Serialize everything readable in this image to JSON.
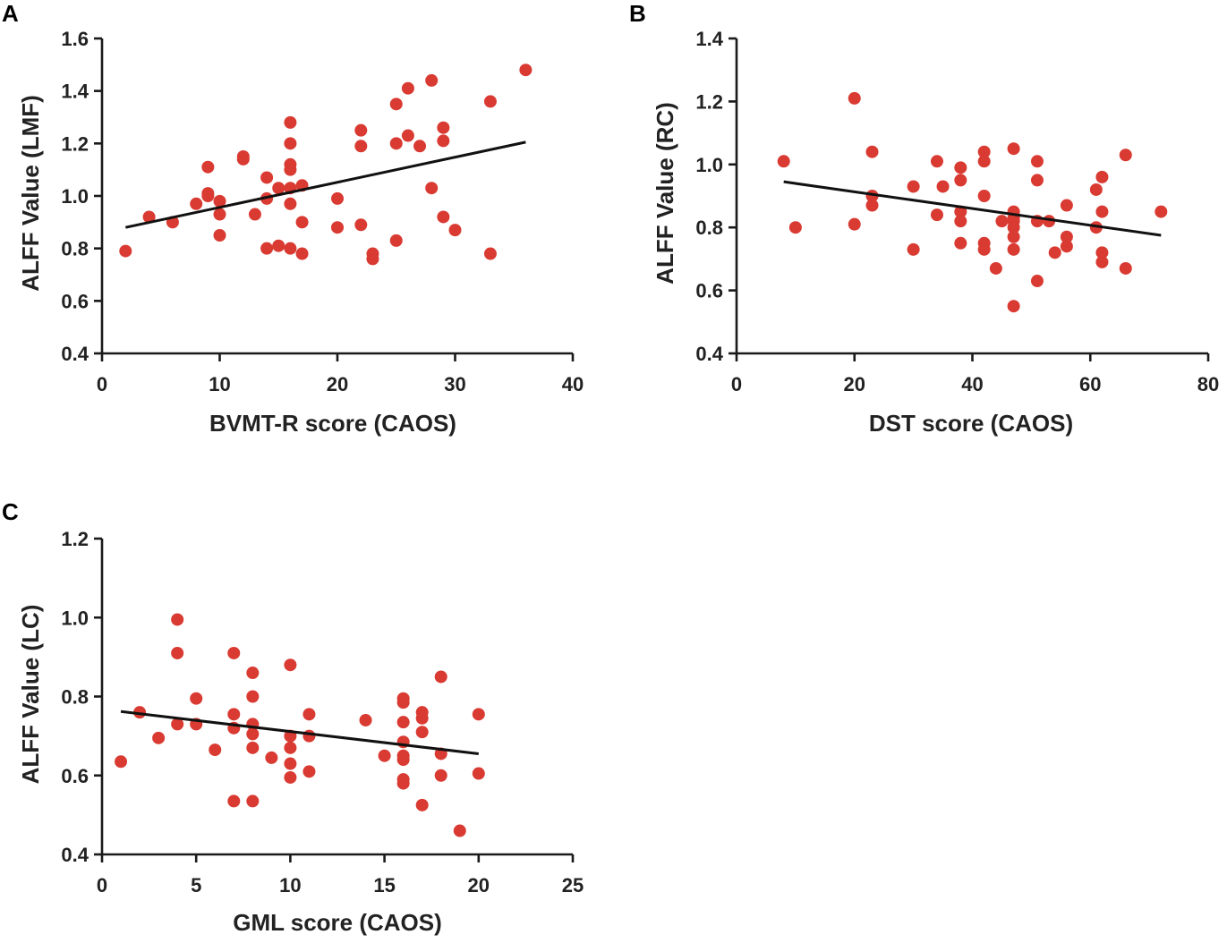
{
  "chart_data": [
    {
      "panel_label": "A",
      "type": "scatter",
      "title": "",
      "xlabel": "BVMT-R score (CAOS)",
      "ylabel": "ALFF Value (LMF)",
      "xlim": [
        0,
        40
      ],
      "ylim": [
        0.4,
        1.6
      ],
      "xticks": [
        0,
        10,
        20,
        30,
        40
      ],
      "yticks": [
        0.4,
        0.6,
        0.8,
        1.0,
        1.2,
        1.4,
        1.6
      ],
      "xtick_labels": [
        "0",
        "10",
        "20",
        "30",
        "40"
      ],
      "ytick_labels": [
        "0.4",
        "0.6",
        "0.8",
        "1.0",
        "1.2",
        "1.4",
        "1.6"
      ],
      "point_color": "#d93a32",
      "regression_line": {
        "x": [
          2,
          36
        ],
        "y": [
          0.88,
          1.205
        ]
      },
      "points": [
        [
          2,
          0.79
        ],
        [
          4,
          0.92
        ],
        [
          6,
          0.9
        ],
        [
          8,
          0.97
        ],
        [
          9,
          1.0
        ],
        [
          9,
          1.01
        ],
        [
          9,
          1.11
        ],
        [
          10,
          0.98
        ],
        [
          10,
          0.93
        ],
        [
          10,
          0.85
        ],
        [
          12,
          1.14
        ],
        [
          12,
          1.15
        ],
        [
          13,
          0.93
        ],
        [
          14,
          1.07
        ],
        [
          14,
          0.99
        ],
        [
          14,
          0.8
        ],
        [
          15,
          1.03
        ],
        [
          15,
          0.81
        ],
        [
          16,
          1.28
        ],
        [
          16,
          1.2
        ],
        [
          16,
          1.12
        ],
        [
          16,
          1.1
        ],
        [
          16,
          1.03
        ],
        [
          16,
          0.97
        ],
        [
          16,
          0.8
        ],
        [
          17,
          1.04
        ],
        [
          17,
          0.9
        ],
        [
          17,
          0.78
        ],
        [
          20,
          0.99
        ],
        [
          20,
          0.88
        ],
        [
          22,
          1.25
        ],
        [
          22,
          1.19
        ],
        [
          22,
          0.89
        ],
        [
          23,
          0.78
        ],
        [
          23,
          0.76
        ],
        [
          25,
          1.35
        ],
        [
          25,
          1.2
        ],
        [
          25,
          0.83
        ],
        [
          26,
          1.41
        ],
        [
          26,
          1.23
        ],
        [
          27,
          1.19
        ],
        [
          28,
          1.44
        ],
        [
          28,
          1.03
        ],
        [
          29,
          1.26
        ],
        [
          29,
          1.21
        ],
        [
          29,
          0.92
        ],
        [
          30,
          0.87
        ],
        [
          33,
          1.36
        ],
        [
          33,
          0.78
        ],
        [
          36,
          1.48
        ]
      ]
    },
    {
      "panel_label": "B",
      "type": "scatter",
      "title": "",
      "xlabel": "DST score (CAOS)",
      "ylabel": "ALFF Value (RC)",
      "xlim": [
        0,
        80
      ],
      "ylim": [
        0.4,
        1.4
      ],
      "xticks": [
        0,
        20,
        40,
        60,
        80
      ],
      "yticks": [
        0.4,
        0.6,
        0.8,
        1.0,
        1.2,
        1.4
      ],
      "xtick_labels": [
        "0",
        "20",
        "40",
        "60",
        "80"
      ],
      "ytick_labels": [
        "0.4",
        "0.6",
        "0.8",
        "1.0",
        "1.2",
        "1.4"
      ],
      "point_color": "#d93a32",
      "regression_line": {
        "x": [
          8,
          72
        ],
        "y": [
          0.945,
          0.775
        ]
      },
      "points": [
        [
          8,
          1.01
        ],
        [
          10,
          0.8
        ],
        [
          20,
          1.21
        ],
        [
          20,
          0.81
        ],
        [
          23,
          1.04
        ],
        [
          23,
          0.9
        ],
        [
          23,
          0.87
        ],
        [
          30,
          0.93
        ],
        [
          30,
          0.73
        ],
        [
          34,
          1.01
        ],
        [
          34,
          0.84
        ],
        [
          35,
          0.93
        ],
        [
          38,
          0.99
        ],
        [
          38,
          0.95
        ],
        [
          38,
          0.85
        ],
        [
          38,
          0.82
        ],
        [
          38,
          0.75
        ],
        [
          42,
          1.04
        ],
        [
          42,
          1.01
        ],
        [
          42,
          0.9
        ],
        [
          42,
          0.75
        ],
        [
          42,
          0.73
        ],
        [
          44,
          0.67
        ],
        [
          45,
          0.82
        ],
        [
          47,
          1.05
        ],
        [
          47,
          0.85
        ],
        [
          47,
          0.83
        ],
        [
          47,
          0.82
        ],
        [
          47,
          0.8
        ],
        [
          47,
          0.77
        ],
        [
          47,
          0.73
        ],
        [
          47,
          0.55
        ],
        [
          51,
          1.01
        ],
        [
          51,
          0.95
        ],
        [
          51,
          0.82
        ],
        [
          51,
          0.63
        ],
        [
          53,
          0.82
        ],
        [
          54,
          0.72
        ],
        [
          56,
          0.87
        ],
        [
          56,
          0.77
        ],
        [
          56,
          0.74
        ],
        [
          61,
          0.92
        ],
        [
          61,
          0.8
        ],
        [
          62,
          0.96
        ],
        [
          62,
          0.85
        ],
        [
          62,
          0.72
        ],
        [
          62,
          0.69
        ],
        [
          66,
          1.03
        ],
        [
          66,
          0.67
        ],
        [
          72,
          0.85
        ]
      ]
    },
    {
      "panel_label": "C",
      "type": "scatter",
      "title": "",
      "xlabel": "GML score (CAOS)",
      "ylabel": "ALFF Value (LC)",
      "xlim": [
        0,
        25
      ],
      "ylim": [
        0.4,
        1.2
      ],
      "xticks": [
        0,
        5,
        10,
        15,
        20,
        25
      ],
      "yticks": [
        0.4,
        0.6,
        0.8,
        1.0,
        1.2
      ],
      "xtick_labels": [
        "0",
        "5",
        "10",
        "15",
        "20",
        "25"
      ],
      "ytick_labels": [
        "0.4",
        "0.6",
        "0.8",
        "1.0",
        "1.2"
      ],
      "point_color": "#d93a32",
      "regression_line": {
        "x": [
          1,
          20
        ],
        "y": [
          0.762,
          0.655
        ]
      },
      "points": [
        [
          1,
          0.635
        ],
        [
          2,
          0.76
        ],
        [
          3,
          0.695
        ],
        [
          4,
          0.995
        ],
        [
          4,
          0.91
        ],
        [
          4,
          0.73
        ],
        [
          5,
          0.795
        ],
        [
          5,
          0.73
        ],
        [
          6,
          0.665
        ],
        [
          7,
          0.91
        ],
        [
          7,
          0.755
        ],
        [
          7,
          0.72
        ],
        [
          7,
          0.535
        ],
        [
          8,
          0.86
        ],
        [
          8,
          0.8
        ],
        [
          8,
          0.73
        ],
        [
          8,
          0.705
        ],
        [
          8,
          0.67
        ],
        [
          8,
          0.535
        ],
        [
          9,
          0.645
        ],
        [
          10,
          0.88
        ],
        [
          10,
          0.7
        ],
        [
          10,
          0.67
        ],
        [
          10,
          0.63
        ],
        [
          10,
          0.595
        ],
        [
          11,
          0.755
        ],
        [
          11,
          0.7
        ],
        [
          11,
          0.61
        ],
        [
          14,
          0.74
        ],
        [
          15,
          0.65
        ],
        [
          16,
          0.795
        ],
        [
          16,
          0.785
        ],
        [
          16,
          0.735
        ],
        [
          16,
          0.685
        ],
        [
          16,
          0.65
        ],
        [
          16,
          0.64
        ],
        [
          16,
          0.59
        ],
        [
          16,
          0.58
        ],
        [
          17,
          0.76
        ],
        [
          17,
          0.745
        ],
        [
          17,
          0.71
        ],
        [
          17,
          0.525
        ],
        [
          18,
          0.85
        ],
        [
          18,
          0.655
        ],
        [
          18,
          0.6
        ],
        [
          19,
          0.46
        ],
        [
          20,
          0.755
        ],
        [
          20,
          0.605
        ]
      ]
    }
  ]
}
